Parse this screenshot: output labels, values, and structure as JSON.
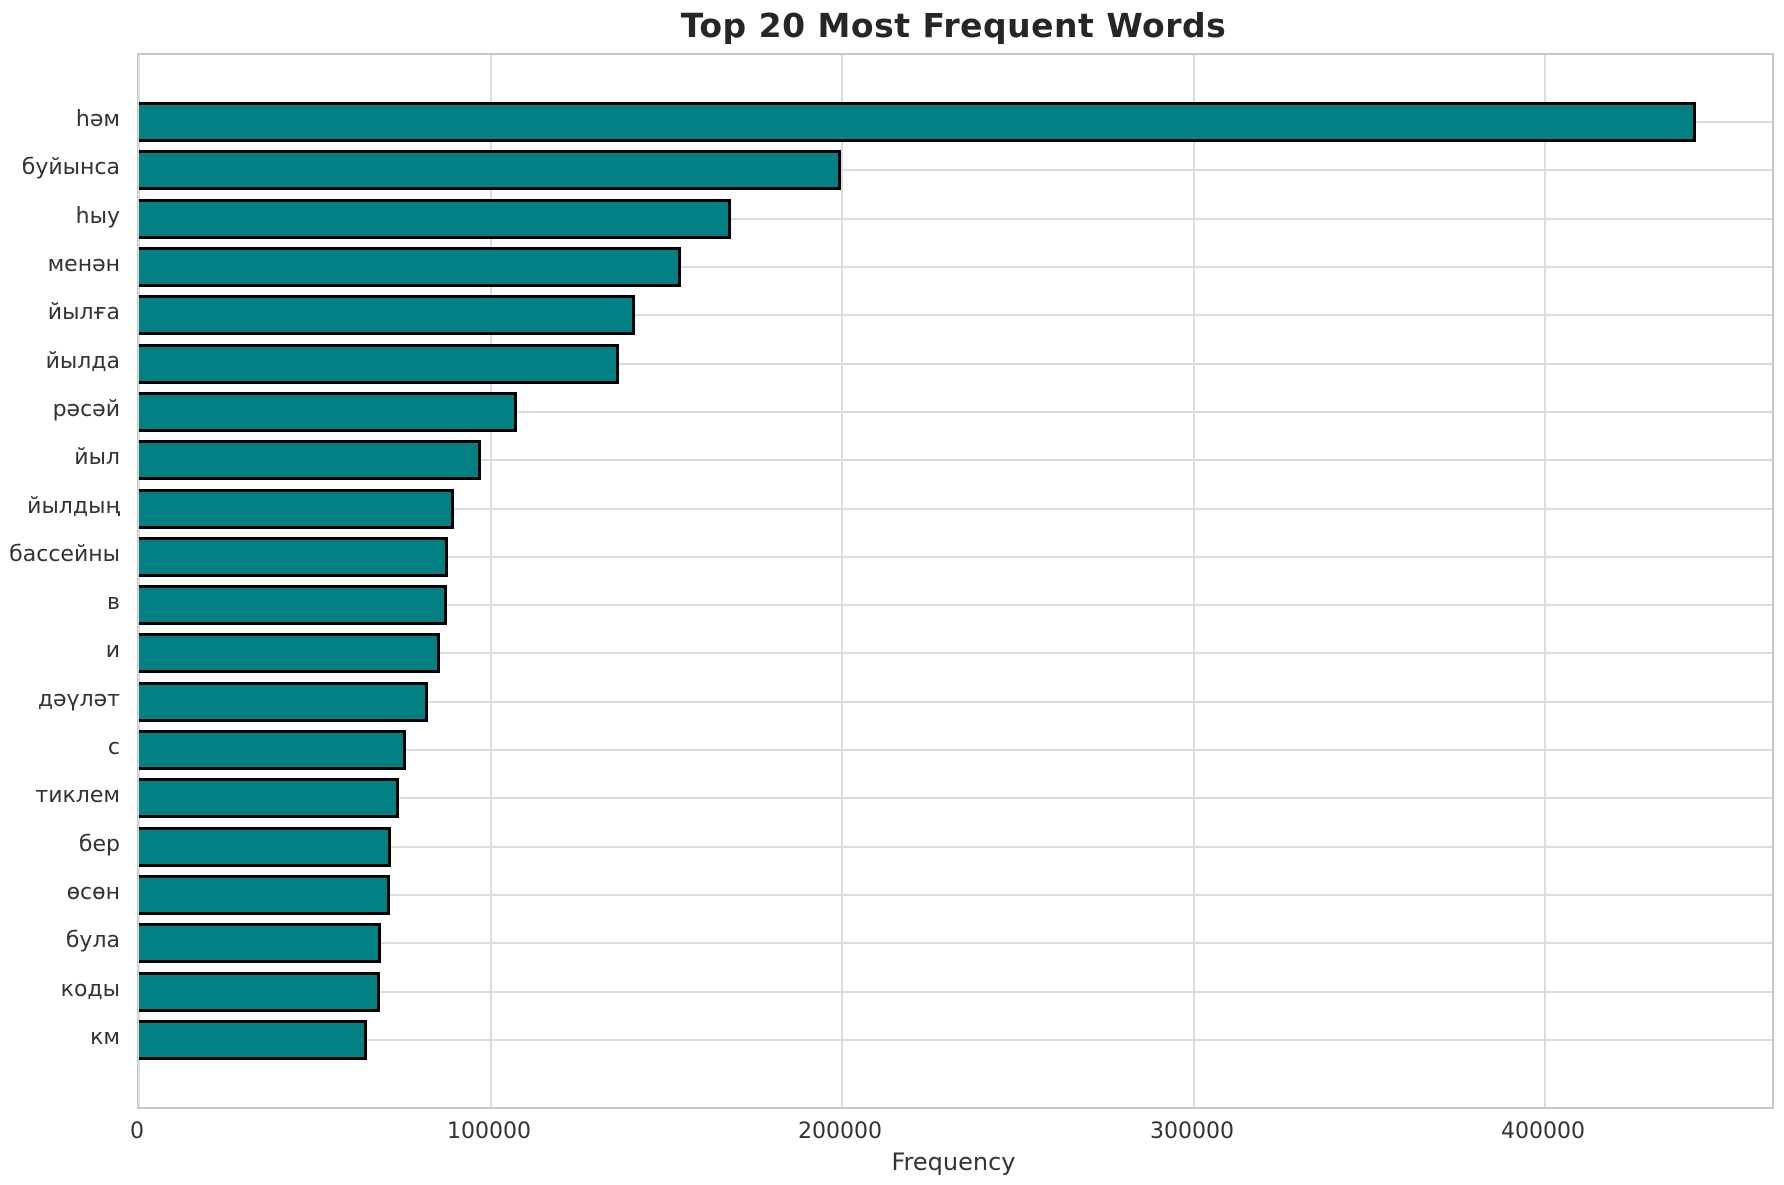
{
  "chart_data": {
    "type": "bar",
    "orientation": "horizontal",
    "title": "Top 20 Most Frequent Words",
    "xlabel": "Frequency",
    "ylabel": "",
    "categories": [
      "һәм",
      "буйынса",
      "һыу",
      "менән",
      "йылға",
      "йылда",
      "рәсәй",
      "йыл",
      "йылдың",
      "бассейны",
      "в",
      "и",
      "дәүләт",
      "с",
      "тиклем",
      "бер",
      "өсөн",
      "була",
      "коды",
      "км"
    ],
    "values": [
      443000,
      199800,
      168500,
      154300,
      141200,
      136600,
      107400,
      97200,
      89500,
      88000,
      87500,
      85500,
      82100,
      75900,
      73900,
      71600,
      71300,
      68900,
      68500,
      64800
    ],
    "xticks": [
      0,
      100000,
      200000,
      300000,
      400000
    ],
    "xtick_labels": [
      "0",
      "100000",
      "200000",
      "300000",
      "400000"
    ],
    "xlim": [
      0,
      464500
    ],
    "grid": true,
    "legend": false,
    "colors": {
      "bar_fill": "#028083",
      "bar_edge": "#000000",
      "grid": "#dcdcdc",
      "spine": "#c8c8c8",
      "text": "#262626",
      "tick_text": "#333333",
      "background": "#ffffff"
    }
  }
}
